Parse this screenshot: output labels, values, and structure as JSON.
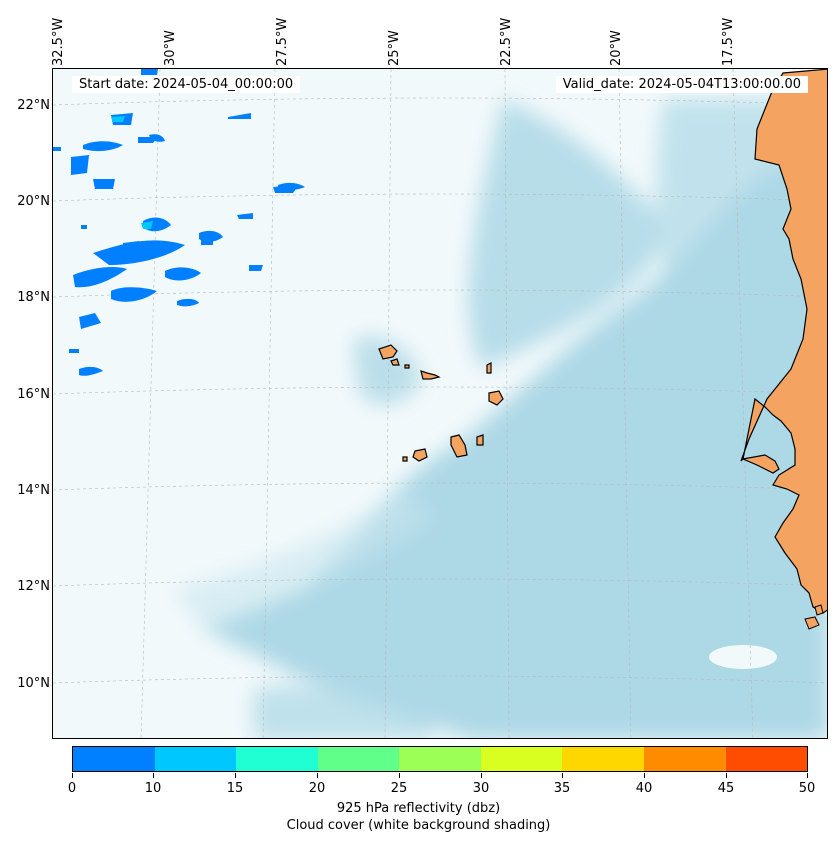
{
  "header": {
    "start_date": "Start date: 2024-05-04_00:00:00",
    "valid_date": "Valid_date: 2024-05-04T13:00:00.00"
  },
  "map": {
    "longitude_labels": [
      "32.5°W",
      "30°W",
      "27.5°W",
      "25°W",
      "22.5°W",
      "20°W",
      "17.5°W"
    ],
    "latitude_labels": [
      "22°N",
      "20°N",
      "18°N",
      "16°N",
      "14°N",
      "12°N",
      "10°N"
    ],
    "colors": {
      "ocean": "#f2f9fb",
      "cloud": "#add8e6",
      "land": "#f4a460",
      "reflectivity": "#0080ff"
    }
  },
  "colorbar": {
    "ticks": [
      "0",
      "10",
      "15",
      "20",
      "25",
      "30",
      "35",
      "40",
      "45",
      "50"
    ],
    "colors": [
      "#0080ff",
      "#00c8ff",
      "#20ffd4",
      "#60ff8a",
      "#9cff55",
      "#d8ff20",
      "#ffd700",
      "#ff8c00",
      "#ff4d00"
    ],
    "label": "925 hPa reflectivity (dbz)",
    "sublabel": "Cloud cover (white background shading)"
  }
}
